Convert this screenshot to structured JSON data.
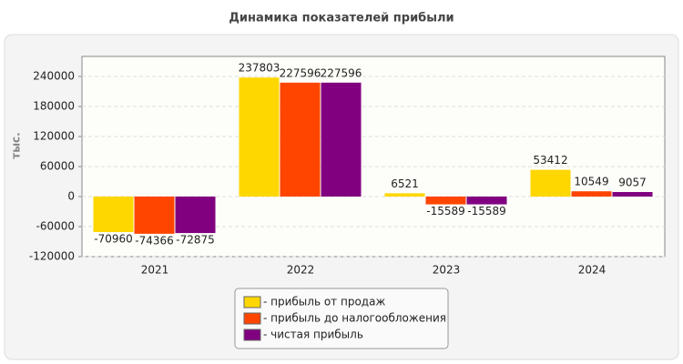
{
  "chart_data": {
    "type": "bar",
    "title": "Динамика показателей прибыли",
    "y_label": "тыс.",
    "categories": [
      "2021",
      "2022",
      "2023",
      "2024"
    ],
    "series": [
      {
        "name": "- прибыль от продаж",
        "color": "#ffd700",
        "values": [
          -70960,
          237803,
          6521,
          53412
        ]
      },
      {
        "name": "- прибыль до налогообложения",
        "color": "#ff4500",
        "values": [
          -74366,
          227596,
          -15589,
          10549
        ]
      },
      {
        "name": "- чистая прибыль",
        "color": "#800080",
        "values": [
          -72875,
          227596,
          -15589,
          9057
        ]
      }
    ],
    "ylim": [
      -120000,
      280000
    ],
    "yticks": [
      -120000,
      -60000,
      0,
      60000,
      120000,
      180000,
      240000
    ],
    "grid": true
  }
}
